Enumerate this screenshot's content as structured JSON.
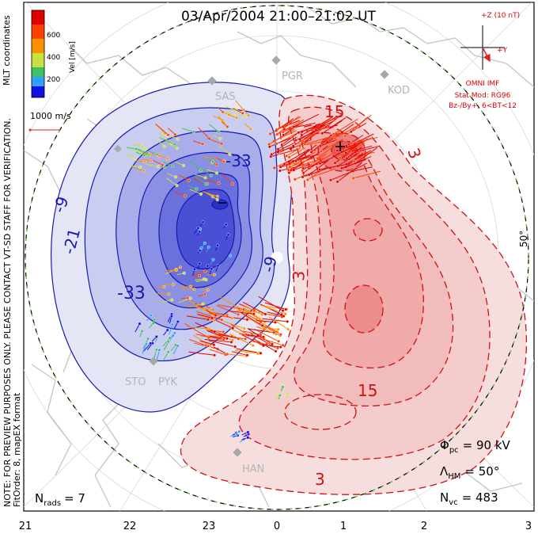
{
  "title": "03/Apr/2004 21:00–21:02 UT",
  "coords_label": "MLT coordinates",
  "colorbar": {
    "label": "Vel [m/s]",
    "ticks": [
      "600",
      "400",
      "200"
    ],
    "colors": [
      "#e00000",
      "#ff6a00",
      "#ffc000",
      "#90e040",
      "#40c0ff",
      "#1010e0"
    ]
  },
  "vector_scale_label": "1000 m/s",
  "imf": {
    "z_label": "+Z (10 nT)",
    "y_label": "+Y",
    "lines": [
      "OMNI IMF",
      "Stat Mod: RG96",
      "Bz-/By+, 6<BT<12"
    ]
  },
  "latitude_label": "50°",
  "notes": [
    "NOTE: FOR PREVIEW PURPOSES ONLY. PLEASE CONTACT VT-SD STAFF FOR VERIFICATION.",
    "FitOrder: 8, mapEX format"
  ],
  "stations": [
    {
      "name": "SAS"
    },
    {
      "name": "PGR"
    },
    {
      "name": "KOD"
    },
    {
      "name": "STO"
    },
    {
      "name": "PYK"
    },
    {
      "name": "HAN"
    }
  ],
  "contour_labels": {
    "neg": [
      "-9",
      "-21",
      "-33",
      "-9",
      "-33"
    ],
    "pos": [
      "15",
      "3",
      "3",
      "15",
      "3"
    ]
  },
  "stats": {
    "n_rads": "N",
    "n_rads_sub": "rads",
    "n_rads_val": "= 7",
    "phi_pc": "Φ",
    "phi_pc_sub": "pc",
    "phi_pc_val": "= 90 kV",
    "lambda_hm": "Λ",
    "lambda_hm_sub": "HM",
    "lambda_hm_val": "= 50°",
    "n_vc": "N",
    "n_vc_sub": "vc",
    "n_vc_val": "= 483"
  },
  "mlt_ticks": [
    "21",
    "22",
    "23",
    "0",
    "1",
    "2",
    "3"
  ],
  "colors": {
    "negative": "#2020c8",
    "positive": "#e02020",
    "coast": "#c8c8c8",
    "boundary": "#60d040"
  }
}
